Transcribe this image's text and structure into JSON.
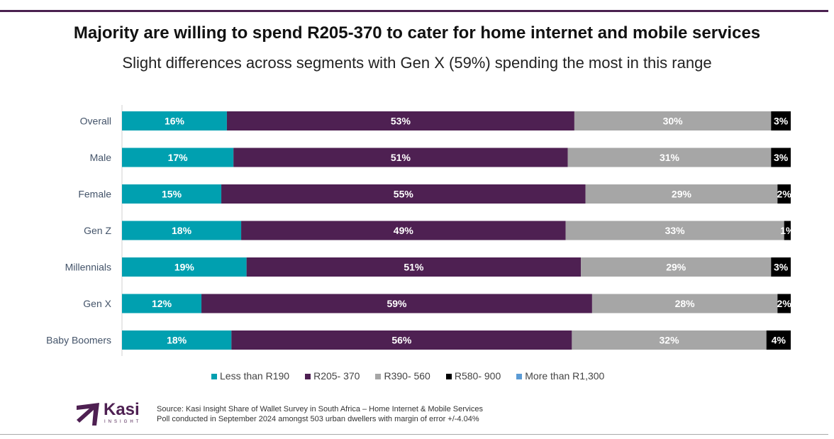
{
  "chart_data": {
    "type": "bar",
    "orientation": "horizontal-stacked-100",
    "title": "Majority are willing to spend R205-370 to cater for home internet and mobile services",
    "subtitle": "Slight differences across segments with Gen X (59%) spending the most in this range",
    "categories": [
      "Overall",
      "Male",
      "Female",
      "Gen Z",
      "Millennials",
      "Gen X",
      "Baby Boomers"
    ],
    "series": [
      {
        "name": "Less than R190",
        "color": "#00A0B0",
        "values": [
          16,
          17,
          15,
          18,
          19,
          12,
          18
        ]
      },
      {
        "name": "R205- 370",
        "color": "#4E2052",
        "values": [
          53,
          51,
          55,
          49,
          51,
          59,
          56
        ]
      },
      {
        "name": "R390- 560",
        "color": "#A6A6A6",
        "values": [
          30,
          31,
          29,
          33,
          29,
          28,
          32
        ]
      },
      {
        "name": "R580- 900",
        "color": "#000000",
        "values": [
          3,
          3,
          2,
          1,
          3,
          2,
          4
        ]
      },
      {
        "name": "More than R1,300",
        "color": "#5B9BD5",
        "values": [
          0,
          0,
          0,
          0,
          0,
          0,
          0
        ]
      }
    ],
    "legend_position": "bottom",
    "unit": "%"
  },
  "logo": {
    "name": "Kasi",
    "tagline": "INSIGHT"
  },
  "source": [
    "Source: Kasi Insight Share of Wallet Survey in South Africa – Home Internet & Mobile Services",
    "Poll conducted in September 2024 amongst 503 urban dwellers with margin of error +/-4.04%"
  ]
}
